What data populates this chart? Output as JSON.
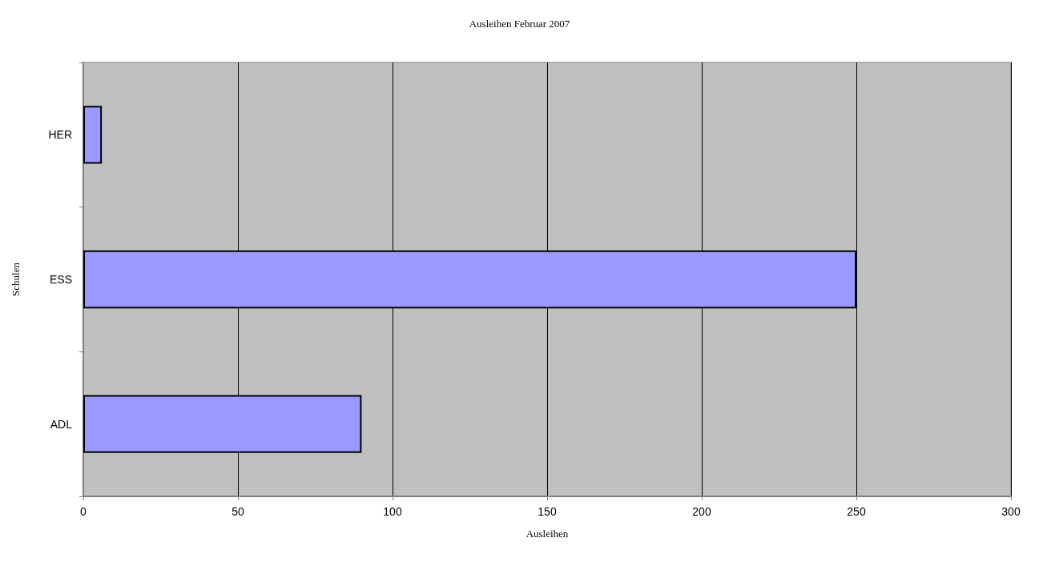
{
  "chart_data": {
    "type": "bar",
    "orientation": "horizontal",
    "title": "Ausleihen Februar 2007",
    "xlabel": "Ausleihen",
    "ylabel": "Schulen",
    "categories": [
      "HER",
      "ESS",
      "ADL"
    ],
    "values": [
      6,
      250,
      90
    ],
    "color": "#9999ff",
    "xlim": [
      0,
      300
    ],
    "xticks": [
      0,
      50,
      100,
      150,
      200,
      250,
      300
    ],
    "grid": "x"
  }
}
